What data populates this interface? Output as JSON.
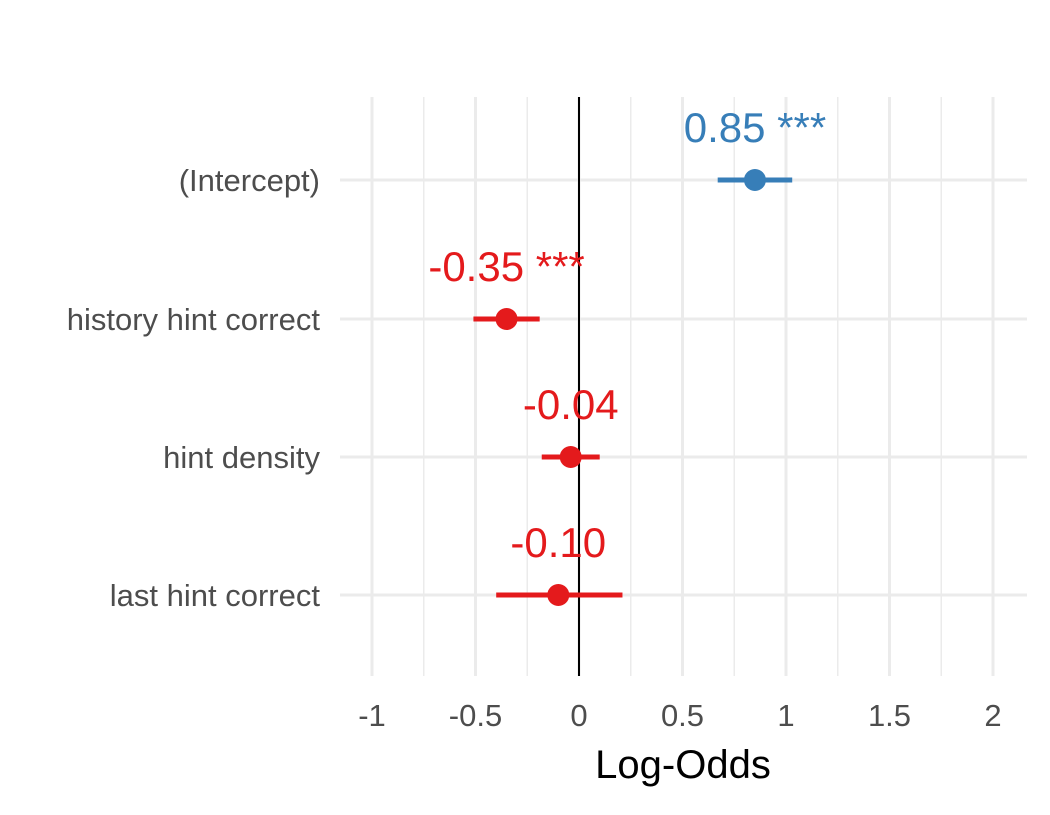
{
  "chart_data": {
    "type": "scatter",
    "subtype": "forest-plot (point estimate with confidence interval)",
    "title": "",
    "xlabel": "Log-Odds",
    "ylabel": "",
    "xlim": [
      -1.05,
      2.15
    ],
    "x_ticks": [
      -1,
      -0.5,
      0,
      0.5,
      1,
      1.5,
      2
    ],
    "x_tick_labels": [
      "-1",
      "-0.5",
      "0",
      "0.5",
      "1",
      "1.5",
      "2"
    ],
    "grid": true,
    "reference_line_x": 0,
    "legend": "none",
    "colors": {
      "positive": "#377EB8",
      "negative": "#E41A1C",
      "grid": "#EBEBEB",
      "axis_text": "#4D4D4D"
    },
    "terms": [
      {
        "label": "(Intercept)",
        "estimate": 0.85,
        "ci_low": 0.67,
        "ci_high": 1.03,
        "annotation": "0.85 ***",
        "sign": "positive"
      },
      {
        "label": "history hint correct",
        "estimate": -0.35,
        "ci_low": -0.51,
        "ci_high": -0.19,
        "annotation": "-0.35 ***",
        "sign": "negative"
      },
      {
        "label": "hint density",
        "estimate": -0.04,
        "ci_low": -0.18,
        "ci_high": 0.1,
        "annotation": "-0.04",
        "sign": "negative"
      },
      {
        "label": "last hint correct",
        "estimate": -0.1,
        "ci_low": -0.4,
        "ci_high": 0.21,
        "annotation": "-0.10",
        "sign": "negative"
      }
    ]
  }
}
